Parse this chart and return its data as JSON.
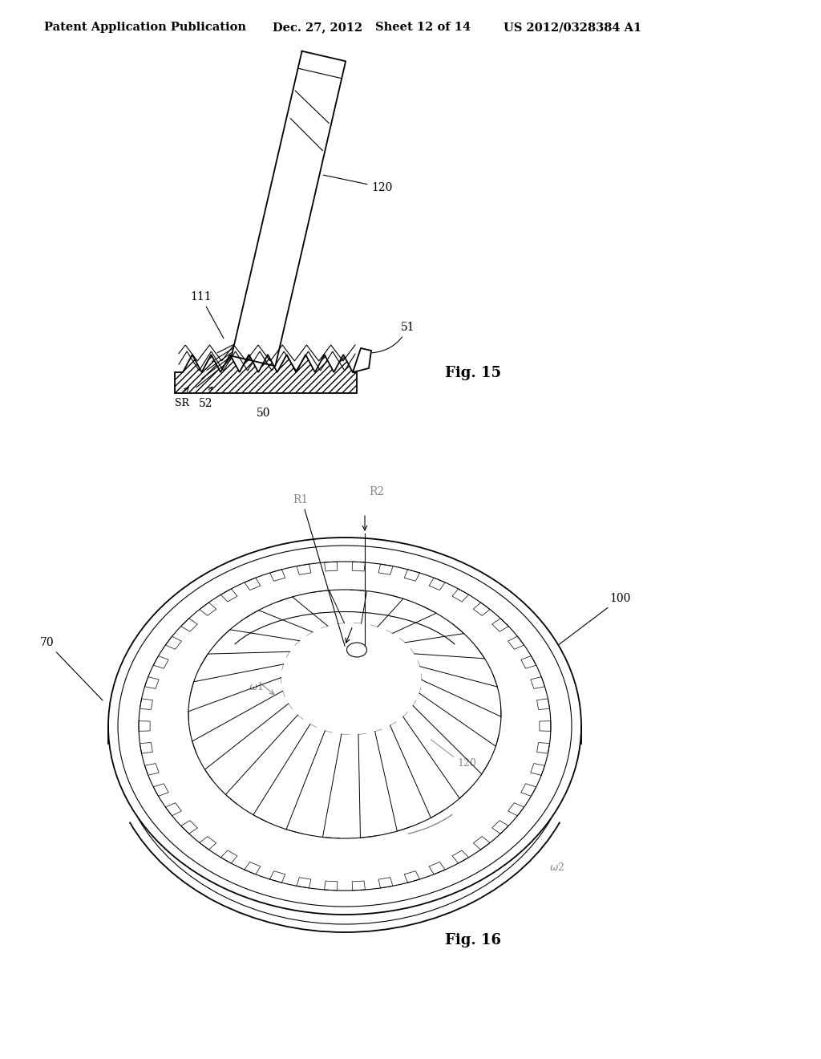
{
  "background_color": "#ffffff",
  "header_text": "Patent Application Publication",
  "header_date": "Dec. 27, 2012",
  "header_sheet": "Sheet 12 of 14",
  "header_patent": "US 2012/0328384 A1",
  "line_color": "#000000",
  "gray_color": "#888888",
  "fig15_label": "Fig. 15",
  "fig16_label": "Fig. 16"
}
